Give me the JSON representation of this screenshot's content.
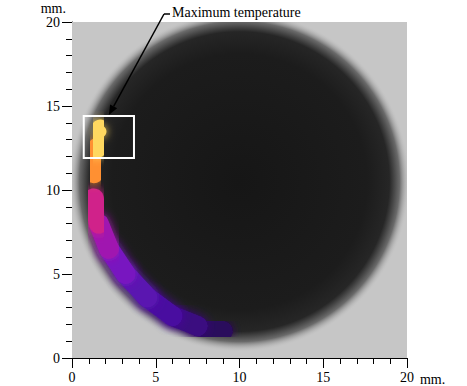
{
  "chart_data": {
    "type": "thermal_image",
    "x_label": "mm.",
    "y_label": "mm.",
    "xlim": [
      0,
      20
    ],
    "ylim": [
      0,
      20
    ],
    "xticks": [
      0,
      5,
      10,
      15,
      20
    ],
    "yticks": [
      0,
      5,
      10,
      15,
      20
    ],
    "dark_disk": {
      "center": [
        10,
        10.5
      ],
      "radius": 9.4
    },
    "hot_trace": {
      "x": [
        1.7,
        1.5,
        1.3,
        1.3,
        1.6,
        2.2,
        3.2,
        4.5,
        6.0,
        7.5,
        9.0,
        10.2
      ],
      "y": [
        13.6,
        12.5,
        11.0,
        9.5,
        8.0,
        6.5,
        5.0,
        3.6,
        2.5,
        1.9,
        1.6,
        1.6
      ],
      "colors": [
        "#ffd860",
        "#ff9030",
        "#f04848",
        "#d0208a",
        "#a018b0",
        "#7818c0",
        "#5a14b0",
        "#4a10a0",
        "#3a0c80",
        "#2c0a5c",
        "#22083e",
        "#1c0a28"
      ]
    },
    "annotation": {
      "text": "Maximum temperature",
      "box": {
        "x": [
          0.7,
          3.7
        ],
        "y": [
          11.9,
          14.4
        ]
      }
    }
  }
}
